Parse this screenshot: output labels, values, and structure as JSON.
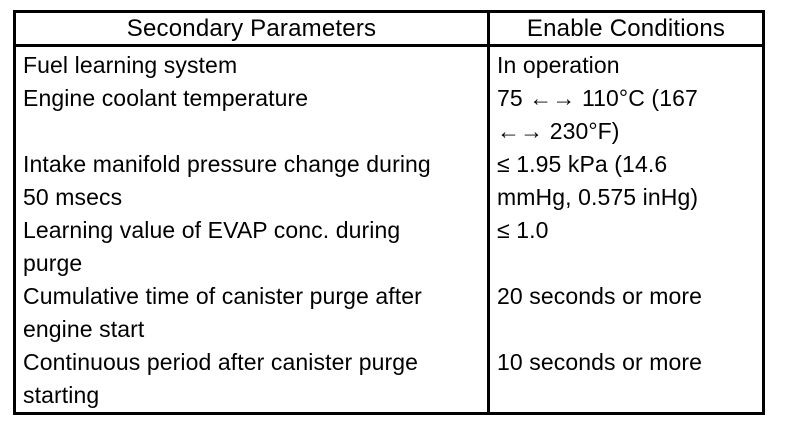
{
  "page": {
    "background": "#ffffff",
    "text_color": "#000000",
    "border_color": "#000000"
  },
  "table": {
    "header": {
      "param_label": "Secondary Parameters",
      "condition_label": "Enable Conditions"
    },
    "rows": [
      {
        "param": "Fuel learning system",
        "condition": "In operation"
      },
      {
        "param": "Engine coolant temperature",
        "condition": "75 ←→ 110°C (167\n←→ 230°F)"
      },
      {
        "param": "Intake manifold pressure change during\n50 msecs",
        "condition": "≤ 1.95 kPa (14.6\nmmHg, 0.575 inHg)"
      },
      {
        "param": "Learning value of EVAP conc. during\npurge",
        "condition": "≤ 1.0"
      },
      {
        "param": "Cumulative time of canister purge after\nengine start",
        "condition": "20 seconds or more"
      },
      {
        "param": "Continuous period after canister purge\nstarting",
        "condition": "10 seconds or more"
      }
    ]
  }
}
